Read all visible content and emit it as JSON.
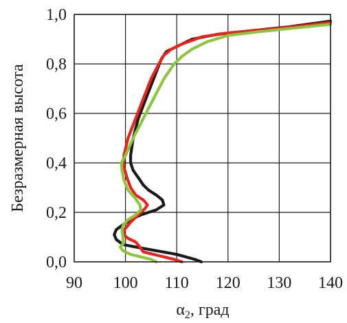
{
  "chart_data": {
    "type": "line",
    "title": "",
    "xlabel": {
      "main": "α",
      "sub": "2",
      "rest": ", град"
    },
    "ylabel": "Безразмерная высота",
    "xlim": [
      90,
      140
    ],
    "ylim": [
      0,
      1
    ],
    "x_ticks": [
      90,
      100,
      110,
      120,
      130,
      140
    ],
    "x_tick_labels": [
      "90",
      "100",
      "110",
      "120",
      "130",
      "140"
    ],
    "y_ticks": [
      0,
      0.2,
      0.4,
      0.6,
      0.8,
      1.0
    ],
    "y_tick_labels": [
      "0,0",
      "0,2",
      "0,4",
      "0,6",
      "0,8",
      "1,0"
    ],
    "grid": true,
    "legend": "none",
    "series": [
      {
        "color": "#1a1a1a",
        "points": [
          [
            114.8,
            0.0
          ],
          [
            113.5,
            0.01
          ],
          [
            110,
            0.03
          ],
          [
            106,
            0.045
          ],
          [
            102,
            0.06
          ],
          [
            99.5,
            0.07
          ],
          [
            98.2,
            0.09
          ],
          [
            97.8,
            0.11
          ],
          [
            98.2,
            0.13
          ],
          [
            99.5,
            0.15
          ],
          [
            101,
            0.17
          ],
          [
            103,
            0.19
          ],
          [
            106,
            0.21
          ],
          [
            107.5,
            0.23
          ],
          [
            107.2,
            0.25
          ],
          [
            106,
            0.27
          ],
          [
            104.5,
            0.29
          ],
          [
            103.5,
            0.31
          ],
          [
            102.5,
            0.34
          ],
          [
            101.5,
            0.37
          ],
          [
            101,
            0.4
          ],
          [
            101,
            0.43
          ],
          [
            101.5,
            0.5
          ],
          [
            102.5,
            0.58
          ],
          [
            104,
            0.66
          ],
          [
            105.5,
            0.74
          ],
          [
            107,
            0.82
          ],
          [
            108,
            0.85
          ],
          [
            110,
            0.87
          ],
          [
            113,
            0.9
          ],
          [
            118,
            0.92
          ],
          [
            125,
            0.935
          ],
          [
            132,
            0.95
          ],
          [
            140,
            0.973
          ]
        ]
      },
      {
        "color": "#e8231e",
        "points": [
          [
            111,
            0.0
          ],
          [
            109.5,
            0.01
          ],
          [
            106.5,
            0.025
          ],
          [
            103.5,
            0.04
          ],
          [
            102.8,
            0.06
          ],
          [
            102,
            0.08
          ],
          [
            100.5,
            0.095
          ],
          [
            99.6,
            0.11
          ],
          [
            99.8,
            0.13
          ],
          [
            101,
            0.16
          ],
          [
            102.5,
            0.19
          ],
          [
            103.8,
            0.215
          ],
          [
            104.3,
            0.23
          ],
          [
            103.5,
            0.25
          ],
          [
            102,
            0.27
          ],
          [
            101,
            0.3
          ],
          [
            100.3,
            0.34
          ],
          [
            99.6,
            0.39
          ],
          [
            99.7,
            0.43
          ],
          [
            100.5,
            0.5
          ],
          [
            102,
            0.58
          ],
          [
            103.5,
            0.66
          ],
          [
            105,
            0.74
          ],
          [
            106.5,
            0.8
          ],
          [
            107.5,
            0.835
          ],
          [
            109,
            0.86
          ],
          [
            111,
            0.88
          ],
          [
            115,
            0.91
          ],
          [
            120,
            0.925
          ],
          [
            128,
            0.94
          ],
          [
            135,
            0.955
          ],
          [
            140,
            0.968
          ]
        ]
      },
      {
        "color": "#8cc63f",
        "points": [
          [
            106,
            0.0
          ],
          [
            105,
            0.01
          ],
          [
            103,
            0.02
          ],
          [
            101,
            0.03
          ],
          [
            99.5,
            0.045
          ],
          [
            99,
            0.06
          ],
          [
            99.6,
            0.075
          ],
          [
            99.5,
            0.1
          ],
          [
            99.3,
            0.13
          ],
          [
            99.6,
            0.15
          ],
          [
            100.5,
            0.17
          ],
          [
            102,
            0.19
          ],
          [
            103,
            0.21
          ],
          [
            102.8,
            0.23
          ],
          [
            101.8,
            0.26
          ],
          [
            100.5,
            0.29
          ],
          [
            99.7,
            0.33
          ],
          [
            99.3,
            0.37
          ],
          [
            99.2,
            0.4
          ],
          [
            100,
            0.43
          ],
          [
            101.5,
            0.5
          ],
          [
            103.5,
            0.58
          ],
          [
            105.5,
            0.66
          ],
          [
            107.5,
            0.74
          ],
          [
            109.5,
            0.8
          ],
          [
            111,
            0.83
          ],
          [
            113,
            0.86
          ],
          [
            116,
            0.89
          ],
          [
            120,
            0.915
          ],
          [
            126,
            0.93
          ],
          [
            133,
            0.945
          ],
          [
            140,
            0.96
          ]
        ]
      }
    ]
  }
}
